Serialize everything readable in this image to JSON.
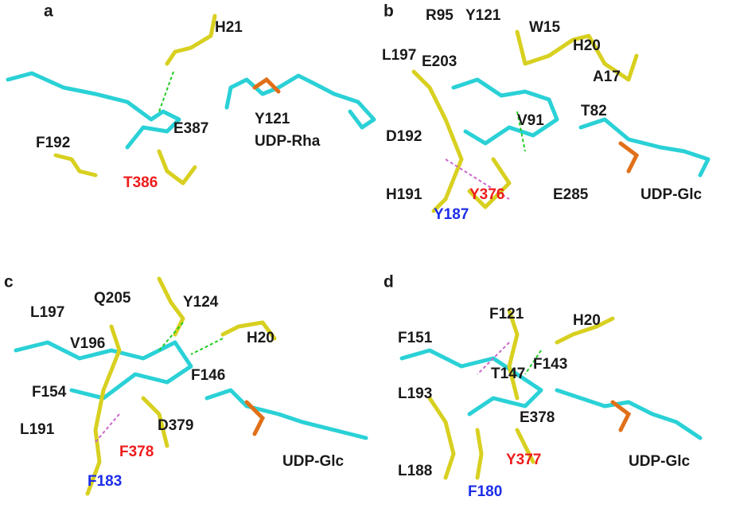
{
  "panels": [
    {
      "letter": "a",
      "labels": [
        {
          "text": "H21"
        },
        {
          "text": "F192"
        },
        {
          "text": "T386",
          "color": "red"
        },
        {
          "text": "E387"
        },
        {
          "text": "Y121"
        },
        {
          "text": "UDP-Rha"
        }
      ]
    },
    {
      "letter": "b",
      "labels": [
        {
          "text": "R95"
        },
        {
          "text": "Y121"
        },
        {
          "text": "W15"
        },
        {
          "text": "L197"
        },
        {
          "text": "E203"
        },
        {
          "text": "H20"
        },
        {
          "text": "A17"
        },
        {
          "text": "T82"
        },
        {
          "text": "D192"
        },
        {
          "text": "V91"
        },
        {
          "text": "H191"
        },
        {
          "text": "Y376",
          "color": "red"
        },
        {
          "text": "E285"
        },
        {
          "text": "UDP-Glc"
        },
        {
          "text": "Y187",
          "color": "blue"
        }
      ]
    },
    {
      "letter": "c",
      "labels": [
        {
          "text": "Q205"
        },
        {
          "text": "L197"
        },
        {
          "text": "Y124"
        },
        {
          "text": "V196"
        },
        {
          "text": "H20"
        },
        {
          "text": "F146"
        },
        {
          "text": "F154"
        },
        {
          "text": "L191"
        },
        {
          "text": "D379"
        },
        {
          "text": "F378",
          "color": "red"
        },
        {
          "text": "UDP-Glc"
        },
        {
          "text": "F183",
          "color": "blue"
        }
      ]
    },
    {
      "letter": "d",
      "labels": [
        {
          "text": "F121"
        },
        {
          "text": "H20"
        },
        {
          "text": "F151"
        },
        {
          "text": "F143"
        },
        {
          "text": "T147"
        },
        {
          "text": "L193"
        },
        {
          "text": "E378"
        },
        {
          "text": "Y377",
          "color": "red"
        },
        {
          "text": "UDP-Glc"
        },
        {
          "text": "L188"
        },
        {
          "text": "F180",
          "color": "blue"
        }
      ]
    }
  ]
}
